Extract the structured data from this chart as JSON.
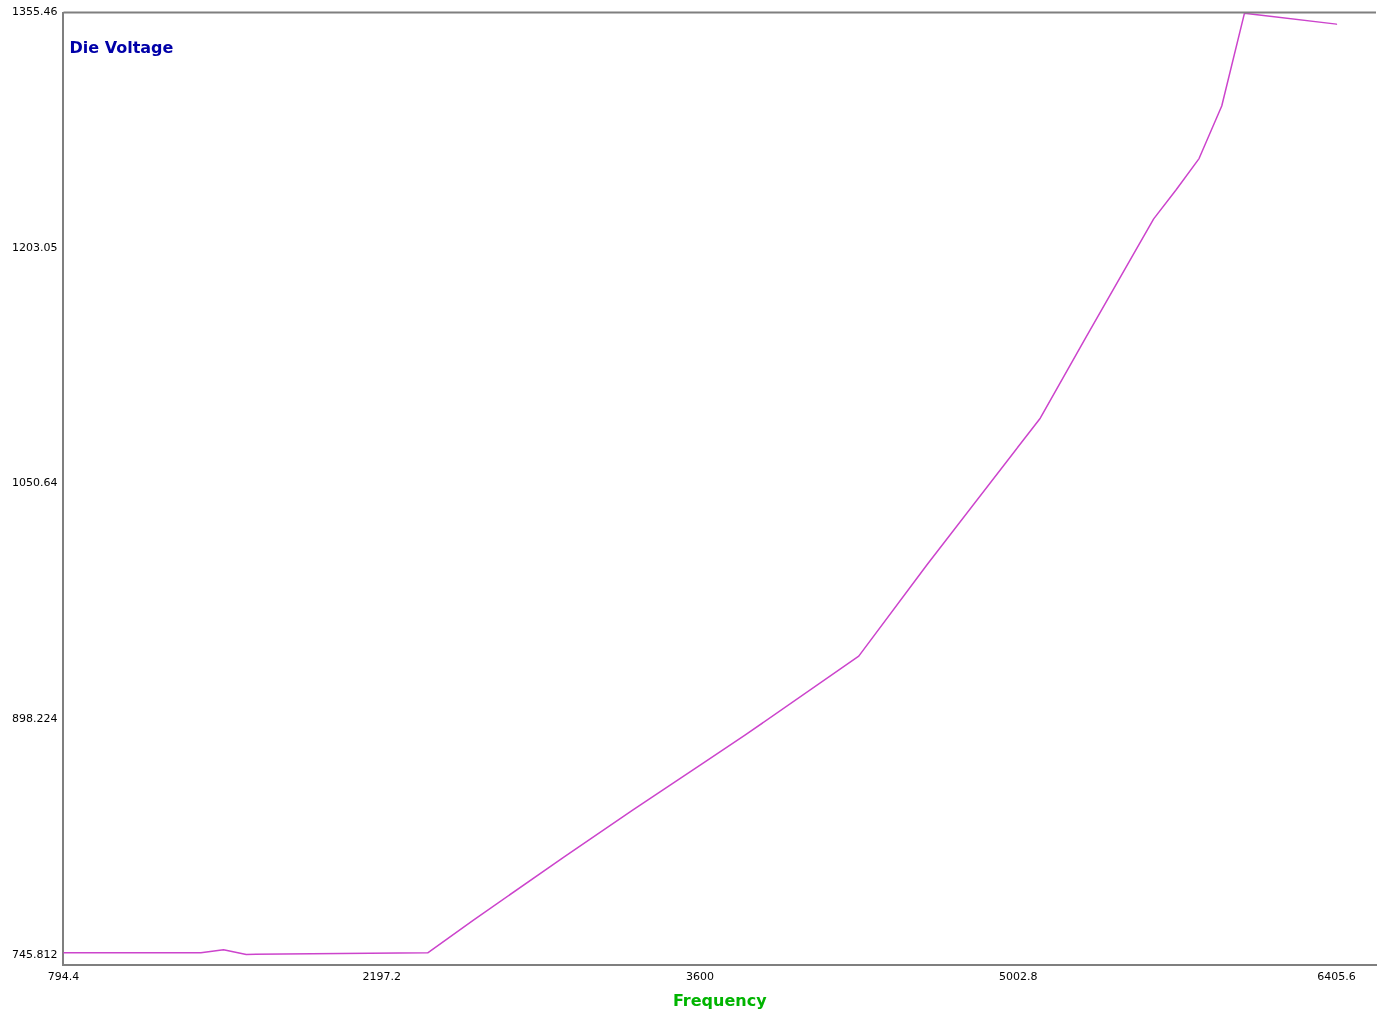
{
  "chart_data": {
    "type": "line",
    "ylabel": "Die Voltage",
    "xlabel": "Frequency",
    "x": [
      794.4,
      1400,
      1500,
      1600,
      2400,
      2600,
      3000,
      3300,
      3800,
      4300,
      4600,
      5100,
      5300,
      5600,
      5700,
      5800,
      5900,
      6000,
      6405.6
    ],
    "values": [
      747,
      747,
      749,
      746,
      747,
      768,
      809,
      839,
      888,
      939,
      998,
      1093,
      1145,
      1222,
      1241,
      1261,
      1295,
      1355,
      1348
    ],
    "color": "#cc44cc",
    "xlim": [
      794.4,
      6580
    ],
    "xticks": [
      794.4,
      2197.2,
      3600,
      5002.8,
      6405.6
    ],
    "ylim": [
      739.4,
      1355.46
    ],
    "yticks": [
      745.812,
      898.224,
      1050.64,
      1203.05,
      1355.46
    ],
    "grid": false,
    "legend": false,
    "marker": "none",
    "line_style": "solid"
  }
}
